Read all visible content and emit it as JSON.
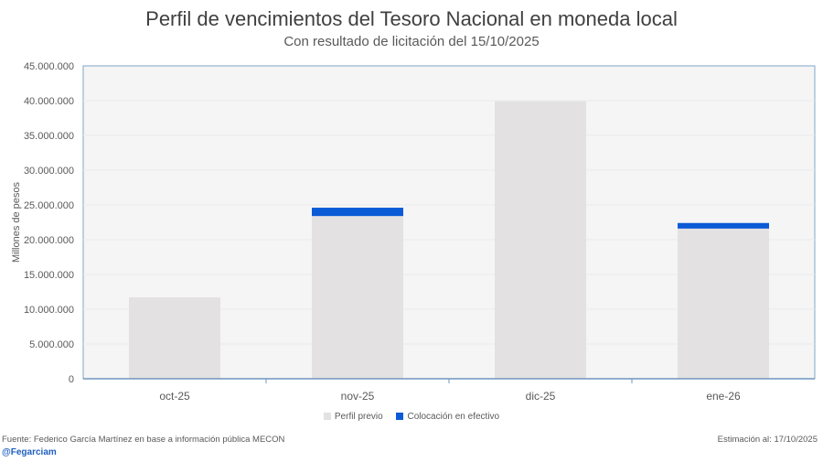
{
  "chart_data": {
    "type": "bar",
    "stacked": true,
    "title": "Perfil de vencimientos del Tesoro Nacional en moneda local",
    "subtitle": "Con resultado de licitación del 15/10/2025",
    "xlabel": "",
    "ylabel": "Millones de pesos",
    "ylim": [
      0,
      45000000
    ],
    "yticks": [
      0,
      5000000,
      10000000,
      15000000,
      20000000,
      25000000,
      30000000,
      35000000,
      40000000,
      45000000
    ],
    "ytick_labels": [
      "0",
      "5.000.000",
      "10.000.000",
      "15.000.000",
      "20.000.000",
      "25.000.000",
      "30.000.000",
      "35.000.000",
      "40.000.000",
      "45.000.000"
    ],
    "categories": [
      "oct-25",
      "nov-25",
      "dic-25",
      "ene-26"
    ],
    "series": [
      {
        "name": "Perfil previo",
        "color": "#e3e1e1",
        "values": [
          11700000,
          23400000,
          39900000,
          21600000
        ]
      },
      {
        "name": "Colocación en efectivo",
        "color": "#0b5bd6",
        "values": [
          0,
          1200000,
          0,
          800000
        ]
      }
    ],
    "grid": true,
    "legend": "bottom"
  },
  "footer": {
    "source": "Fuente: Federico García Martínez en base a información pública MECON",
    "handle": "@Fegarciam",
    "estimation": "Estimación al: 17/10/2025"
  }
}
